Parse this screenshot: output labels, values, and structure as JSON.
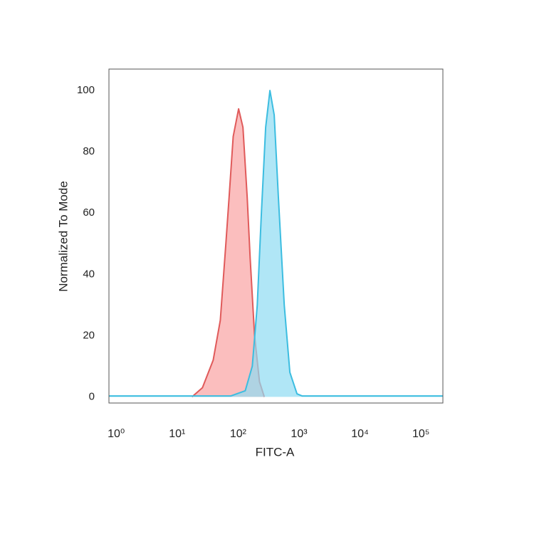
{
  "chart_data": {
    "type": "histogram-overlay",
    "x_label": "FITC-A",
    "y_label": "Normalized To Mode",
    "xscale": "log",
    "xlim": [
      0.76,
      229000
    ],
    "xticks": [
      {
        "value": 1,
        "label": "10⁰"
      },
      {
        "value": 10,
        "label": "10¹"
      },
      {
        "value": 100,
        "label": "10²"
      },
      {
        "value": 1000,
        "label": "10³"
      },
      {
        "value": 10000,
        "label": "10⁴"
      },
      {
        "value": 100000,
        "label": "10⁵"
      }
    ],
    "ylim": [
      -2,
      107
    ],
    "yticks": [
      0,
      20,
      40,
      60,
      80,
      100
    ],
    "grid": false,
    "series": [
      {
        "color": "#e05a5a",
        "fill": "#f9a3a3",
        "x": [
          17.5,
          26,
          39,
          51,
          63,
          71,
          83,
          102,
          120,
          141,
          158,
          186,
          224,
          269
        ],
        "values": [
          0,
          3,
          12,
          25,
          50,
          65,
          85,
          94,
          88,
          65,
          45,
          20,
          5,
          0
        ]
      },
      {
        "color": "#3cbde0",
        "fill": "#8fdcf2",
        "x": [
          0.76,
          76,
          131,
          171,
          206,
          241,
          283,
          333,
          391,
          458,
          571,
          706,
          926,
          1120,
          229000
        ],
        "values": [
          0.3,
          0.3,
          2,
          10,
          30,
          60,
          88,
          100,
          92,
          65,
          30,
          8,
          1,
          0.3,
          0.3
        ]
      }
    ]
  }
}
